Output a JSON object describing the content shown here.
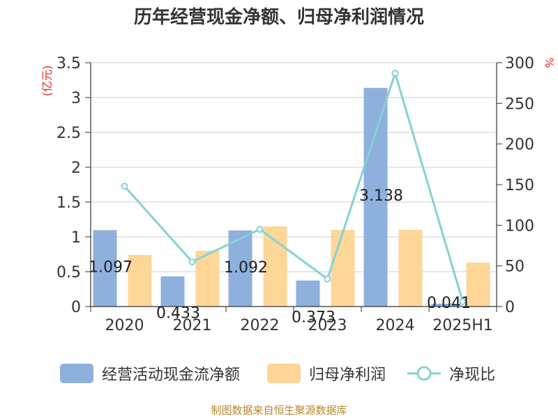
{
  "title": "历年经营现金净额、归母净利润情况",
  "source_note": "制图数据来自恒生聚源数据库",
  "colors": {
    "cash_flow": "#8eb0dd",
    "net_profit": "#fdd698",
    "ratio": "#86d1d4",
    "axis_unit": "#e8281e",
    "grid": "#cccccc",
    "text": "#333333"
  },
  "chart_data": {
    "type": "bar",
    "title": "历年经营现金净额、归母净利润情况",
    "categories": [
      "2020",
      "2021",
      "2022",
      "2023",
      "2024",
      "2025H1"
    ],
    "y_left": {
      "label": "(亿元)",
      "ylim": [
        0,
        3.5
      ],
      "ticks": [
        "0",
        "0.5",
        "1",
        "1.5",
        "2",
        "2.5",
        "3",
        "3.5"
      ]
    },
    "y_right": {
      "label": "%",
      "ylim": [
        0,
        300
      ],
      "ticks": [
        "0",
        "50",
        "100",
        "150",
        "200",
        "250",
        "300"
      ]
    },
    "series": [
      {
        "name": "经营活动现金流净额",
        "type": "bar",
        "axis": "left",
        "values": [
          1.097,
          0.433,
          1.092,
          0.373,
          3.138,
          0.041
        ],
        "labels": [
          "1.097",
          "0.433",
          "1.092",
          "0.373",
          "3.138",
          "0.041"
        ]
      },
      {
        "name": "归母净利润",
        "type": "bar",
        "axis": "left",
        "values": [
          0.74,
          0.8,
          1.15,
          1.1,
          1.1,
          0.63
        ]
      },
      {
        "name": "净现比",
        "type": "line",
        "axis": "right",
        "values": [
          148,
          55,
          95,
          34,
          287,
          6
        ]
      }
    ],
    "grid": true,
    "legend_position": "bottom"
  }
}
